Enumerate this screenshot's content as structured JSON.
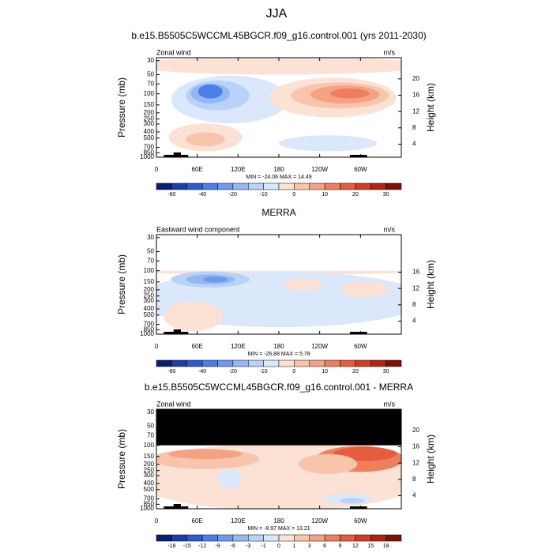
{
  "figure_title": "JJA",
  "chart_data": [
    {
      "type": "contour",
      "title": "b.e15.B5505C5WCCML45BGCR.f09_g16.control.001 (yrs 2011-2030)",
      "left_label": "Zonal wind",
      "right_label": "m/s",
      "y_label": "Pressure (mb)",
      "y2_label": "Height (km)",
      "stats": "MIN = -24.06  MAX =  14.49",
      "xlim": [
        0,
        360
      ],
      "xticks": [
        0,
        {
          "value": 60,
          "label": "60E"
        },
        {
          "value": 120,
          "label": "120E"
        },
        180,
        {
          "value": 240,
          "label": "120W"
        },
        {
          "value": 300,
          "label": "60W"
        }
      ],
      "ylim": [
        1000,
        27
      ],
      "log_y": true,
      "yticks": [
        30,
        50,
        70,
        100,
        150,
        200,
        250,
        300,
        400,
        500,
        700,
        850,
        1000
      ],
      "y2lim": [
        0.8,
        25.2
      ],
      "y2ticks": [
        4,
        8,
        12,
        16,
        20
      ],
      "colors": [
        "#0a1f6e",
        "#1a3fa8",
        "#2a5cd6",
        "#4a7ee8",
        "#6d9af0",
        "#94b8f4",
        "#b8d2f8",
        "#dbe8fb",
        "#fbe2d4",
        "#f8c4ab",
        "#f4a283",
        "#ee7f5e",
        "#e65c3c",
        "#d43a22",
        "#b52214",
        "#7a1208"
      ],
      "colorbar_ticks": [
        -60,
        -40,
        -20,
        -10,
        0,
        10,
        20,
        30
      ]
    },
    {
      "type": "contour",
      "title": "MERRA",
      "left_label": "Eastward wind component",
      "right_label": "m/s",
      "y_label": "Pressure (mb)",
      "y2_label": "Height (km)",
      "stats": "MIN = -26.88  MAX =  5.78",
      "xlim": [
        0,
        360
      ],
      "xticks": [
        0,
        {
          "value": 60,
          "label": "60E"
        },
        {
          "value": 120,
          "label": "120E"
        },
        180,
        {
          "value": 240,
          "label": "120W"
        },
        {
          "value": 300,
          "label": "60W"
        }
      ],
      "ylim": [
        1000,
        27
      ],
      "log_y": true,
      "yticks": [
        30,
        50,
        70,
        100,
        150,
        200,
        250,
        300,
        400,
        500,
        700,
        850,
        1000
      ],
      "y2lim": [
        0.8,
        25.2
      ],
      "y2ticks": [
        4,
        8,
        12,
        16
      ],
      "colors": [
        "#0a1f6e",
        "#1a3fa8",
        "#2a5cd6",
        "#4a7ee8",
        "#6d9af0",
        "#94b8f4",
        "#b8d2f8",
        "#dbe8fb",
        "#fbe2d4",
        "#f8c4ab",
        "#f4a283",
        "#ee7f5e",
        "#e65c3c",
        "#d43a22",
        "#b52214",
        "#7a1208"
      ],
      "colorbar_ticks": [
        -60,
        -40,
        -20,
        -10,
        0,
        10,
        20,
        30
      ]
    },
    {
      "type": "contour",
      "title": "b.e15.B5505C5WCCML45BGCR.f09_g16.control.001 - MERRA",
      "left_label": "Zonal wind",
      "right_label": "m/s",
      "y_label": "Pressure (mb)",
      "y2_label": "Height (km)",
      "stats": "MIN = -8.97  MAX =  13.21",
      "xlim": [
        0,
        360
      ],
      "xticks": [
        0,
        {
          "value": 60,
          "label": "60E"
        },
        {
          "value": 120,
          "label": "120E"
        },
        180,
        {
          "value": 240,
          "label": "120W"
        },
        {
          "value": 300,
          "label": "60W"
        }
      ],
      "ylim": [
        1000,
        27
      ],
      "log_y": true,
      "yticks": [
        30,
        50,
        70,
        100,
        150,
        200,
        250,
        300,
        400,
        500,
        700,
        850,
        1000
      ],
      "y2lim": [
        0.8,
        25.2
      ],
      "y2ticks": [
        4,
        8,
        12,
        16,
        20
      ],
      "colors": [
        "#0a1f6e",
        "#1a3fa8",
        "#2a5cd6",
        "#4a7ee8",
        "#6d9af0",
        "#94b8f4",
        "#b8d2f8",
        "#dbe8fb",
        "#fbe2d4",
        "#f8c4ab",
        "#f4a283",
        "#ee7f5e",
        "#e65c3c",
        "#d43a22",
        "#b52214",
        "#7a1208"
      ],
      "colorbar_ticks": [
        -18,
        -15,
        -12,
        -9,
        -6,
        -3,
        -1,
        0,
        1,
        3,
        6,
        9,
        12,
        15,
        18
      ]
    }
  ]
}
